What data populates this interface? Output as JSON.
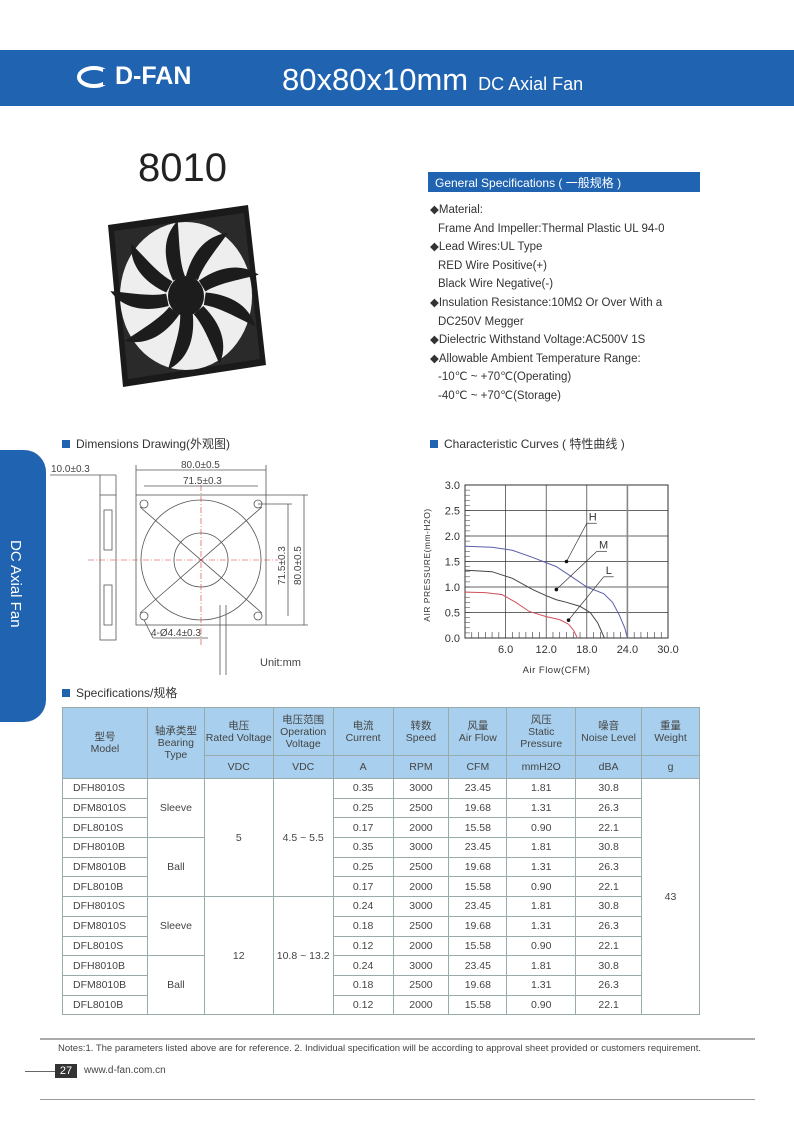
{
  "header": {
    "brand": "D-FAN",
    "title": "80x80x10mm",
    "subtitle": "DC Axial Fan",
    "color": "#1f63b1"
  },
  "model": "8010",
  "side_tab": "DC Axial Fan",
  "general_specs": {
    "title": "General Specifications ( 一般规格 )",
    "items": [
      {
        "text": "Material:",
        "bullet": true
      },
      {
        "text": "Frame And Impeller:Thermal Plastic UL 94-0",
        "bullet": false
      },
      {
        "text": "Lead Wires:UL Type",
        "bullet": true
      },
      {
        "text": "RED Wire Positive(+)",
        "bullet": false
      },
      {
        "text": "Black Wire Negative(-)",
        "bullet": false
      },
      {
        "text": "Insulation Resistance:10MΩ  Or Over With a",
        "bullet": true
      },
      {
        "text": " DC250V Megger",
        "bullet": false
      },
      {
        "text": "Dielectric Withstand Voltage:AC500V 1S",
        "bullet": true
      },
      {
        "text": "Allowable Ambient Temperature Range:",
        "bullet": true
      },
      {
        "text": "-10℃ ~ +70℃(Operating)",
        "bullet": false
      },
      {
        "text": "-40℃ ~ +70℃(Storage)",
        "bullet": false
      }
    ]
  },
  "dimensions": {
    "title": "Dimensions Drawing(外观图)",
    "thickness": "10.0±0.3",
    "width": "80.0±0.5",
    "hole_span": "71.5±0.3",
    "height": "80.0±0.5",
    "hole_span_v": "71.5±0.3",
    "holes": "4-Ø4.4±0.3",
    "unit": "Unit:mm"
  },
  "curves": {
    "title": "Characteristic Curves ( 特性曲线 )",
    "ylabel": "AIR PRESSURE(mm-H2O)",
    "xlabel": "Air Flow(CFM)",
    "xticks": [
      "6.0",
      "12.0",
      "18.0",
      "24.0",
      "30.0"
    ],
    "yticks": [
      "0.0",
      "0.5",
      "1.0",
      "1.5",
      "2.0",
      "2.5",
      "3.0"
    ],
    "xlim": [
      0,
      30
    ],
    "ylim": [
      0,
      3
    ],
    "series": [
      {
        "name": "H",
        "color": "#5a5fa8",
        "points": [
          [
            0,
            1.8
          ],
          [
            4,
            1.78
          ],
          [
            7,
            1.72
          ],
          [
            10,
            1.58
          ],
          [
            13.5,
            1.4
          ],
          [
            16,
            1.18
          ],
          [
            18,
            1.0
          ],
          [
            20.5,
            0.87
          ],
          [
            21.8,
            0.7
          ],
          [
            22.8,
            0.45
          ],
          [
            23.6,
            0.2
          ],
          [
            24,
            0
          ]
        ]
      },
      {
        "name": "M",
        "color": "#444444",
        "points": [
          [
            0,
            1.33
          ],
          [
            4,
            1.3
          ],
          [
            7,
            1.17
          ],
          [
            10,
            0.95
          ],
          [
            12,
            0.83
          ],
          [
            13.5,
            0.75
          ],
          [
            15,
            0.7
          ],
          [
            17,
            0.62
          ],
          [
            18.5,
            0.5
          ],
          [
            19.6,
            0.3
          ],
          [
            20.2,
            0.12
          ],
          [
            20.6,
            0
          ]
        ]
      },
      {
        "name": "L",
        "color": "#d0505a",
        "points": [
          [
            0,
            0.9
          ],
          [
            3,
            0.89
          ],
          [
            5.5,
            0.85
          ],
          [
            7.5,
            0.7
          ],
          [
            9.5,
            0.52
          ],
          [
            12,
            0.42
          ],
          [
            14,
            0.36
          ],
          [
            15.3,
            0.27
          ],
          [
            16.1,
            0.14
          ],
          [
            16.6,
            0
          ]
        ]
      }
    ]
  },
  "specifications": {
    "title": "Specifications/规格",
    "headers": [
      {
        "zh": "型号",
        "en": "Model"
      },
      {
        "zh": "轴承类型",
        "en": "Bearing Type"
      },
      {
        "zh": "电压",
        "en": "Rated Voltage"
      },
      {
        "zh": "电压范围",
        "en": "Operation Voltage"
      },
      {
        "zh": "电流",
        "en": "Current"
      },
      {
        "zh": "转数",
        "en": "Speed"
      },
      {
        "zh": "风量",
        "en": "Air Flow"
      },
      {
        "zh": "风压",
        "en": "Static Pressure"
      },
      {
        "zh": "噪音",
        "en": "Noise Level"
      },
      {
        "zh": "重量",
        "en": "Weight"
      }
    ],
    "units": [
      "VDC",
      "VDC",
      "A",
      "RPM",
      "CFM",
      "mmH2O",
      "dBA",
      "g"
    ],
    "groups": [
      {
        "voltage": "5",
        "range": "4.5 ~ 5.5"
      },
      {
        "voltage": "12",
        "range": "10.8 ~ 13.2"
      }
    ],
    "bearings": [
      "Sleeve",
      "Ball",
      "Sleeve",
      "Ball"
    ],
    "weight": "43",
    "rows": [
      [
        "DFH8010S",
        "0.35",
        "3000",
        "23.45",
        "1.81",
        "30.8"
      ],
      [
        "DFM8010S",
        "0.25",
        "2500",
        "19.68",
        "1.31",
        "26.3"
      ],
      [
        "DFL8010S",
        "0.17",
        "2000",
        "15.58",
        "0.90",
        "22.1"
      ],
      [
        "DFH8010B",
        "0.35",
        "3000",
        "23.45",
        "1.81",
        "30.8"
      ],
      [
        "DFM8010B",
        "0.25",
        "2500",
        "19.68",
        "1.31",
        "26.3"
      ],
      [
        "DFL8010B",
        "0.17",
        "2000",
        "15.58",
        "0.90",
        "22.1"
      ],
      [
        "DFH8010S",
        "0.24",
        "3000",
        "23.45",
        "1.81",
        "30.8"
      ],
      [
        "DFM8010S",
        "0.18",
        "2500",
        "19.68",
        "1.31",
        "26.3"
      ],
      [
        "DFL8010S",
        "0.12",
        "2000",
        "15.58",
        "0.90",
        "22.1"
      ],
      [
        "DFH8010B",
        "0.24",
        "3000",
        "23.45",
        "1.81",
        "30.8"
      ],
      [
        "DFM8010B",
        "0.18",
        "2500",
        "19.68",
        "1.31",
        "26.3"
      ],
      [
        "DFL8010B",
        "0.12",
        "2000",
        "15.58",
        "0.90",
        "22.1"
      ]
    ]
  },
  "footer": {
    "notes": "Notes:1. The parameters listed above are for reference.   2. Individual specification will be according to approval sheet provided or customers requirement.",
    "page": "27",
    "url": "www.d-fan.com.cn"
  }
}
